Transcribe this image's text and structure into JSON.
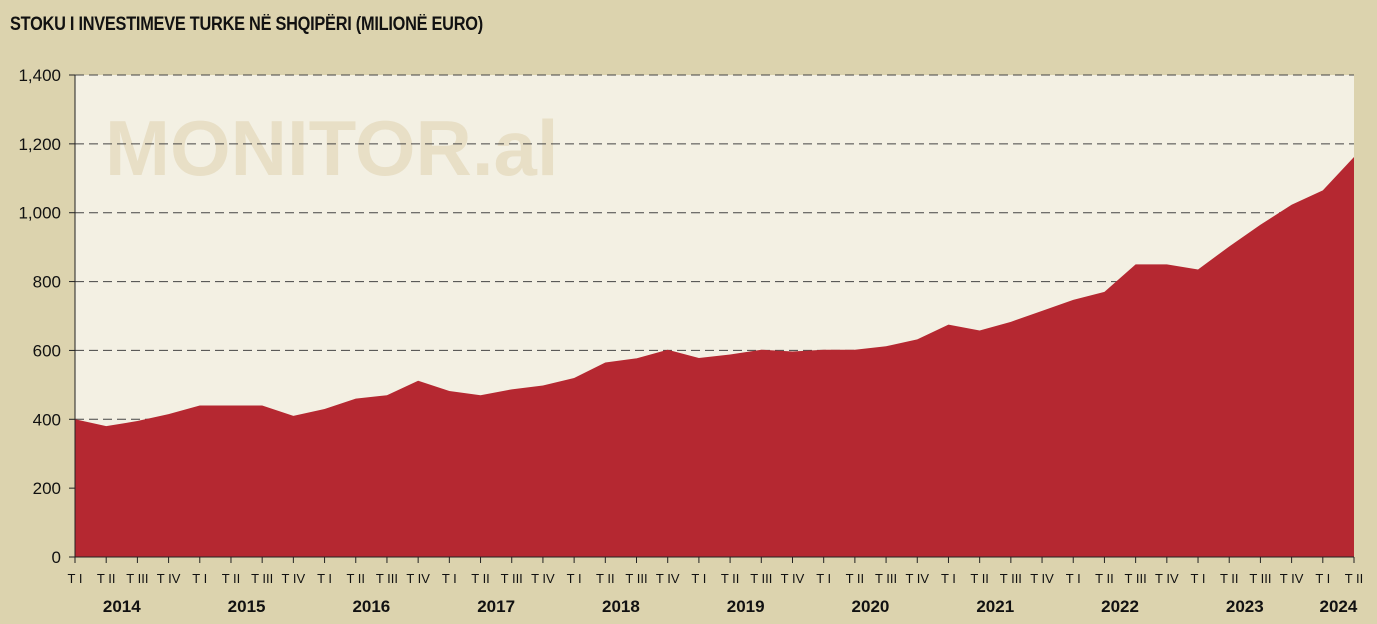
{
  "chart_data": {
    "type": "area",
    "title": "STOKU I INVESTIMEVE TURKE NË SHQIPËRI (MILIONË EURO)",
    "watermark": "MONITOR.al",
    "ylim": [
      0,
      1400
    ],
    "yticks": [
      0,
      200,
      400,
      600,
      800,
      1000,
      1200,
      1400
    ],
    "ytick_labels": [
      "0",
      "200",
      "400",
      "600",
      "800",
      "1,000",
      "1,200",
      "1,400"
    ],
    "grid": "horizontal dashed",
    "quarter_labels": [
      "T I",
      "T II",
      "T III",
      "T IV"
    ],
    "years": [
      {
        "label": "2014",
        "quarters": [
          "T I",
          "T II",
          "T III",
          "T IV"
        ]
      },
      {
        "label": "2015",
        "quarters": [
          "T I",
          "T II",
          "T III",
          "T IV"
        ]
      },
      {
        "label": "2016",
        "quarters": [
          "T I",
          "T II",
          "T III",
          "T IV"
        ]
      },
      {
        "label": "2017",
        "quarters": [
          "T I",
          "T II",
          "T III",
          "T IV"
        ]
      },
      {
        "label": "2018",
        "quarters": [
          "T I",
          "T II",
          "T III",
          "T IV"
        ]
      },
      {
        "label": "2019",
        "quarters": [
          "T I",
          "T II",
          "T III",
          "T IV"
        ]
      },
      {
        "label": "2020",
        "quarters": [
          "T I",
          "T II",
          "T III",
          "T IV"
        ]
      },
      {
        "label": "2021",
        "quarters": [
          "T I",
          "T II",
          "T III",
          "T IV"
        ]
      },
      {
        "label": "2022",
        "quarters": [
          "T I",
          "T II",
          "T III",
          "T IV"
        ]
      },
      {
        "label": "2023",
        "quarters": [
          "T I",
          "T II",
          "T III",
          "T IV"
        ]
      },
      {
        "label": "2024",
        "quarters": [
          "T I",
          "T II"
        ]
      }
    ],
    "values": [
      400,
      380,
      395,
      415,
      440,
      440,
      440,
      410,
      430,
      460,
      470,
      512,
      482,
      470,
      487,
      498,
      520,
      565,
      577,
      602,
      578,
      588,
      602,
      597,
      602,
      602,
      612,
      632,
      675,
      658,
      683,
      715,
      747,
      770,
      850,
      850,
      835,
      902,
      965,
      1023,
      1065,
      1162
    ],
    "colors": {
      "area": "#b52831",
      "plot_bg": "#f3f0e3",
      "page_bg": "#dcd3ae",
      "grid": "#444444",
      "watermark": "#e8dfc6"
    }
  }
}
